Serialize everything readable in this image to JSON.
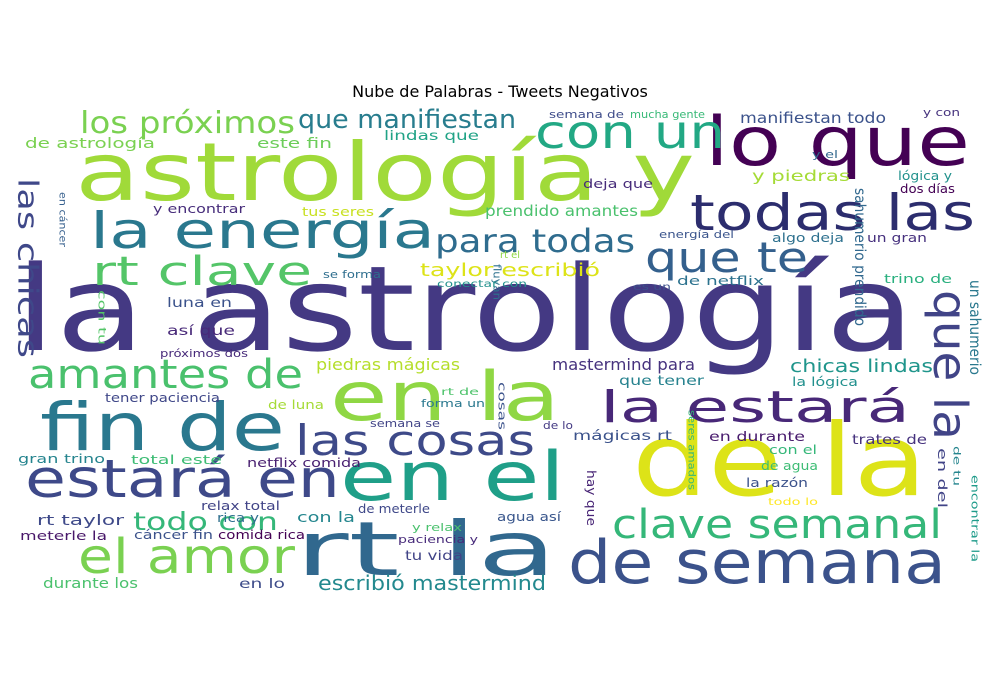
{
  "chart_data": {
    "type": "wordcloud",
    "title": "Nube de Palabras - Tweets Negativos",
    "colormap": "viridis",
    "background": "#ffffff",
    "words": [
      {
        "text": "la astrología",
        "color": "#443983"
      },
      {
        "text": "astrología y",
        "color": "#a0da39"
      },
      {
        "text": "de la",
        "color": "#dde318"
      },
      {
        "text": "lo que",
        "color": "#440154"
      },
      {
        "text": "rt la",
        "color": "#31688e"
      },
      {
        "text": "en la",
        "color": "#8fd744"
      },
      {
        "text": "en el",
        "color": "#1f9f88"
      },
      {
        "text": "fin de",
        "color": "#2a788e"
      },
      {
        "text": "de semana",
        "color": "#3b528b"
      },
      {
        "text": "estará en",
        "color": "#3e4989"
      },
      {
        "text": "la energía",
        "color": "#2a788e"
      },
      {
        "text": "el amor",
        "color": "#7ad151"
      },
      {
        "text": "que la",
        "color": "#414487"
      },
      {
        "text": "todas las",
        "color": "#2c2d6e"
      },
      {
        "text": "con un",
        "color": "#22a884"
      },
      {
        "text": "la estará",
        "color": "#482878"
      },
      {
        "text": "clave semanal",
        "color": "#35b779"
      },
      {
        "text": "las cosas",
        "color": "#3e4a89"
      },
      {
        "text": "amantes de",
        "color": "#4ac16d"
      },
      {
        "text": "rt clave",
        "color": "#54c568"
      },
      {
        "text": "que te",
        "color": "#34608d"
      },
      {
        "text": "los próximos",
        "color": "#7ad151"
      },
      {
        "text": "para todas",
        "color": "#2f6c8e"
      },
      {
        "text": "que manifiestan",
        "color": "#287d8e"
      },
      {
        "text": "las chicas",
        "color": "#3f4889"
      },
      {
        "text": "todo con",
        "color": "#35b779"
      },
      {
        "text": "escribió mastermind",
        "color": "#23898e"
      },
      {
        "text": "taylor escribió",
        "color": "#dde318"
      },
      {
        "text": "piedras mágicas",
        "color": "#b5de2b"
      },
      {
        "text": "mastermind para",
        "color": "#46327e"
      },
      {
        "text": "chicas lindas",
        "color": "#1f958b"
      },
      {
        "text": "manifiestan todo",
        "color": "#3b528b"
      },
      {
        "text": "sahumerio prendido",
        "color": "#31688e"
      },
      {
        "text": "un sahumerio",
        "color": "#2a788e"
      },
      {
        "text": "prendido amantes",
        "color": "#4ac16d"
      },
      {
        "text": "y piedras",
        "color": "#a5db36"
      },
      {
        "text": "de astrología",
        "color": "#7ad151"
      },
      {
        "text": "este fin",
        "color": "#6ccd5a"
      },
      {
        "text": "lindas que",
        "color": "#20a386"
      },
      {
        "text": "semana de",
        "color": "#3e4c8a"
      },
      {
        "text": "mucha gente",
        "color": "#38b977"
      },
      {
        "text": "y con",
        "color": "#46337e"
      },
      {
        "text": "y el",
        "color": "#31688e"
      },
      {
        "text": "lógica y",
        "color": "#21918c"
      },
      {
        "text": "dos días",
        "color": "#440154"
      },
      {
        "text": "deja que",
        "color": "#472c7a"
      },
      {
        "text": "y encontrar",
        "color": "#472d7b"
      },
      {
        "text": "tus seres",
        "color": "#c8e020"
      },
      {
        "text": "en cáncer",
        "color": "#355f8d"
      },
      {
        "text": "energía del",
        "color": "#3a548c"
      },
      {
        "text": "algo deja",
        "color": "#2d708e"
      },
      {
        "text": "un gran",
        "color": "#46307e"
      },
      {
        "text": "rt el",
        "color": "#8fd744"
      },
      {
        "text": "fluyan",
        "color": "#2c718e"
      },
      {
        "text": "se forma",
        "color": "#2e6e8e"
      },
      {
        "text": "conectar con",
        "color": "#21918c"
      },
      {
        "text": "es un",
        "color": "#3c508b"
      },
      {
        "text": "de netflix",
        "color": "#2c728e"
      },
      {
        "text": "trino de",
        "color": "#2ab07f"
      },
      {
        "text": "con tu",
        "color": "#54c568"
      },
      {
        "text": "luna en",
        "color": "#3b528b"
      },
      {
        "text": "así que",
        "color": "#482979"
      },
      {
        "text": "próximos dos",
        "color": "#472a7a"
      },
      {
        "text": "que tener",
        "color": "#26828e"
      },
      {
        "text": "la lógica",
        "color": "#21908d"
      },
      {
        "text": "tener paciencia",
        "color": "#3f4788"
      },
      {
        "text": "de luna",
        "color": "#a5db36"
      },
      {
        "text": "rt de",
        "color": "#4ec36b"
      },
      {
        "text": "forma un",
        "color": "#2a788e"
      },
      {
        "text": "cosas",
        "color": "#3b528b"
      },
      {
        "text": "semana se",
        "color": "#414487"
      },
      {
        "text": "de lo",
        "color": "#443a83"
      },
      {
        "text": "mágicas rt",
        "color": "#3b528b"
      },
      {
        "text": "en durante",
        "color": "#481b6d"
      },
      {
        "text": "trates de",
        "color": "#46327e"
      },
      {
        "text": "con el",
        "color": "#35b779"
      },
      {
        "text": "de agua",
        "color": "#3dbc74"
      },
      {
        "text": "la razón",
        "color": "#3b528b"
      },
      {
        "text": "todo lo",
        "color": "#fde725"
      },
      {
        "text": "en del",
        "color": "#414487"
      },
      {
        "text": "de tu",
        "color": "#25858e"
      },
      {
        "text": "encontrar la",
        "color": "#1e9b8a"
      },
      {
        "text": "gran trino",
        "color": "#25848e"
      },
      {
        "text": "total este",
        "color": "#3dbc74"
      },
      {
        "text": "netflix comida",
        "color": "#481f70"
      },
      {
        "text": "hay que",
        "color": "#482576"
      },
      {
        "text": "seres amados",
        "color": "#35b779"
      },
      {
        "text": "relax total",
        "color": "#414487"
      },
      {
        "text": "rt taylor",
        "color": "#3e4989"
      },
      {
        "text": "rica y",
        "color": "#2e6f8e"
      },
      {
        "text": "con la",
        "color": "#24868e"
      },
      {
        "text": "de meterle",
        "color": "#3f4889"
      },
      {
        "text": "y relax",
        "color": "#4ac16d"
      },
      {
        "text": "agua así",
        "color": "#39568c"
      },
      {
        "text": "meterle la",
        "color": "#481769"
      },
      {
        "text": "cáncer fin",
        "color": "#3b528b"
      },
      {
        "text": "comida rica",
        "color": "#440154"
      },
      {
        "text": "paciencia y",
        "color": "#472a7a"
      },
      {
        "text": "tu vida",
        "color": "#414487"
      },
      {
        "text": "durante los",
        "color": "#4ac16d"
      },
      {
        "text": "en lo",
        "color": "#3e4c8a"
      }
    ]
  }
}
